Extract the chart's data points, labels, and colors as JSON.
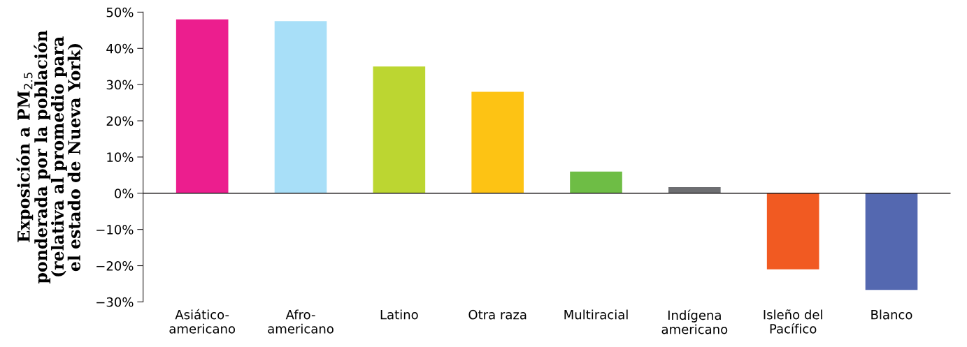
{
  "chart_data": {
    "type": "bar",
    "ylabel": "Exposición a PM$_{2.5}$\nponderada por la población\n(relativa al promedio para\nel estado de Nueva York)",
    "categories": [
      "Asiático-\namericano",
      "Afro-\namericano",
      "Latino",
      "Otra raza",
      "Multiracial",
      "Indígena\namericano",
      "Isleño del\nPacífico",
      "Blanco"
    ],
    "values": [
      48,
      47.5,
      35,
      28,
      6,
      1.7,
      -21,
      -26.7
    ],
    "colors": [
      "#ec1e8e",
      "#a8dff8",
      "#bcd631",
      "#fdc314",
      "#6ebd45",
      "#6d6e71",
      "#f15a22",
      "#5468b0"
    ],
    "ylim": [
      -30,
      50
    ],
    "yticks": [
      {
        "value": -30,
        "label": "−30%"
      },
      {
        "value": -20,
        "label": "−20%"
      },
      {
        "value": -10,
        "label": "−10%"
      },
      {
        "value": 0,
        "label": "0%"
      },
      {
        "value": 10,
        "label": "10%"
      },
      {
        "value": 20,
        "label": "20%"
      },
      {
        "value": 30,
        "label": "30%"
      },
      {
        "value": 40,
        "label": "40%"
      },
      {
        "value": 50,
        "label": "50%"
      }
    ],
    "ref_lines": [
      {
        "axis": "y",
        "value": 0,
        "color": "#231f20"
      }
    ],
    "grid": false,
    "legend": false
  }
}
